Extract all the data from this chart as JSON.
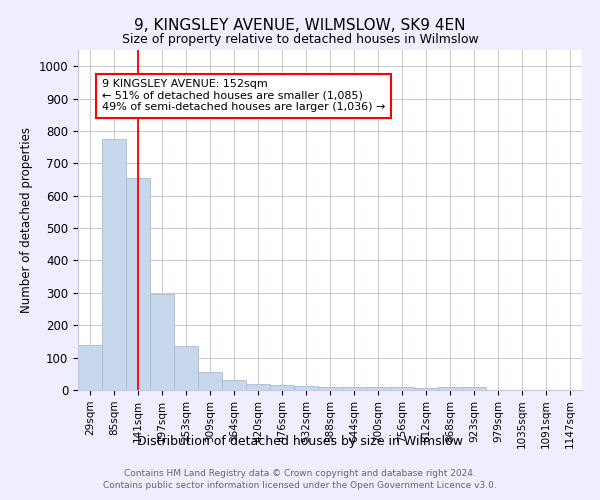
{
  "title": "9, KINGSLEY AVENUE, WILMSLOW, SK9 4EN",
  "subtitle": "Size of property relative to detached houses in Wilmslow",
  "xlabel": "Distribution of detached houses by size in Wilmslow",
  "ylabel": "Number of detached properties",
  "categories": [
    "29sqm",
    "85sqm",
    "141sqm",
    "197sqm",
    "253sqm",
    "309sqm",
    "364sqm",
    "420sqm",
    "476sqm",
    "532sqm",
    "588sqm",
    "644sqm",
    "700sqm",
    "756sqm",
    "812sqm",
    "868sqm",
    "923sqm",
    "979sqm",
    "1035sqm",
    "1091sqm",
    "1147sqm"
  ],
  "values": [
    140,
    775,
    655,
    295,
    135,
    56,
    30,
    18,
    15,
    13,
    8,
    10,
    10,
    10,
    7,
    10,
    8,
    0,
    0,
    0,
    0
  ],
  "bar_color": "#c8d8ec",
  "bar_edge_color": "#aabccc",
  "red_line_x": 2,
  "annotation_text": "9 KINGSLEY AVENUE: 152sqm\n← 51% of detached houses are smaller (1,085)\n49% of semi-detached houses are larger (1,036) →",
  "ylim": [
    0,
    1050
  ],
  "yticks": [
    0,
    100,
    200,
    300,
    400,
    500,
    600,
    700,
    800,
    900,
    1000
  ],
  "footer_line1": "Contains HM Land Registry data © Crown copyright and database right 2024.",
  "footer_line2": "Contains public sector information licensed under the Open Government Licence v3.0.",
  "bg_color": "#eeeeff",
  "plot_bg_color": "#ffffff",
  "grid_color": "#c8c8dc"
}
